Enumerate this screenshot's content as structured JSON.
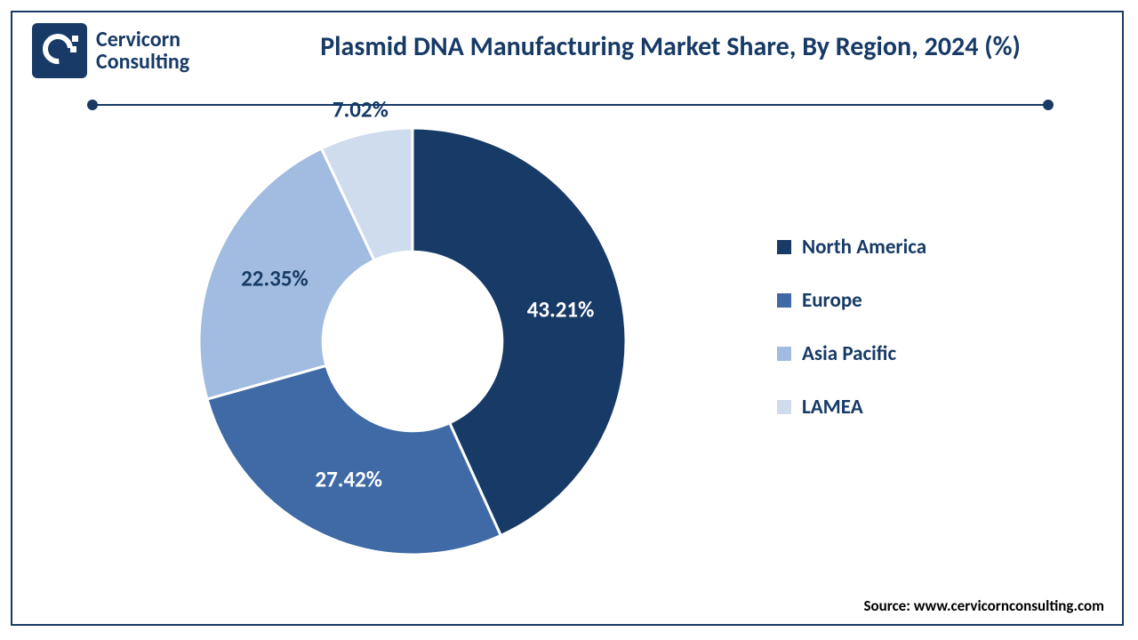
{
  "brand": {
    "name_line1": "Cervicorn",
    "name_line2": "Consulting",
    "mark_color": "#173a66",
    "text_color": "#173a66"
  },
  "title": "Plasmid DNA Manufacturing Market Share, By Region, 2024 (%)",
  "title_color": "#173a66",
  "title_fontsize": 30,
  "divider": {
    "color": "#173a66",
    "dot_radius": 6
  },
  "chart": {
    "type": "donut",
    "inner_radius_pct": 42,
    "outer_radius_pct": 100,
    "background_color": "#ffffff",
    "start_angle_deg": 0,
    "slices": [
      {
        "label": "North America",
        "value": 43.21,
        "display": "43.21%",
        "color": "#173a66",
        "label_color": "#ffffff"
      },
      {
        "label": "Europe",
        "value": 27.42,
        "display": "27.42%",
        "color": "#3f6aa5",
        "label_color": "#ffffff"
      },
      {
        "label": "Asia Pacific",
        "value": 22.35,
        "display": "22.35%",
        "color": "#a1bce0",
        "label_color": "#173a66"
      },
      {
        "label": "LAMEA",
        "value": 7.02,
        "display": "7.02%",
        "color": "#cfdcee",
        "label_color": "#173a66",
        "label_outside": true
      }
    ],
    "label_fontsize": 25,
    "label_fontweight": 700,
    "gap_stroke": "#ffffff",
    "gap_stroke_width": 3
  },
  "legend": {
    "items": [
      {
        "label": "North America",
        "color": "#173a66"
      },
      {
        "label": "Europe",
        "color": "#3f6aa5"
      },
      {
        "label": "Asia Pacific",
        "color": "#a1bce0"
      },
      {
        "label": "LAMEA",
        "color": "#cfdcee"
      }
    ],
    "label_color": "#173a66",
    "label_fontsize": 23,
    "swatch_size": 16,
    "item_gap": 32
  },
  "source": {
    "prefix": "Source: ",
    "text": "www.cervicornconsulting.com",
    "color": "#000000",
    "fontsize": 17
  },
  "frame": {
    "border_color": "#173a66",
    "border_width": 2
  }
}
